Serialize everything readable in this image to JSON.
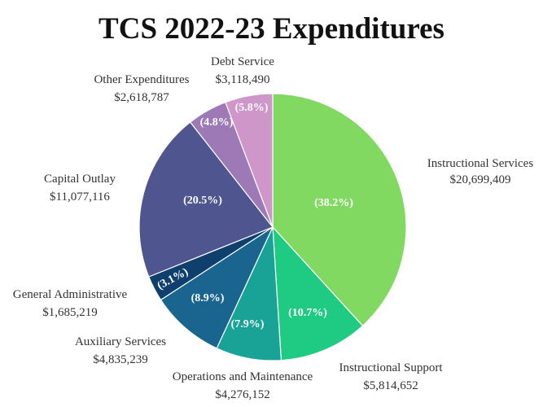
{
  "chart_data": {
    "type": "pie",
    "title": "TCS 2022-23 Expenditures",
    "slices": [
      {
        "name": "Instructional Services",
        "value": 20699409,
        "value_label": "$20,699,409",
        "percent_label": "(38.2%)",
        "color": "#82d962"
      },
      {
        "name": "Instructional Support",
        "value": 5814652,
        "value_label": "$5,814,652",
        "percent_label": "(10.7%)",
        "color": "#1fca82"
      },
      {
        "name": "Operations and Maintenance",
        "value": 4276152,
        "value_label": "$4,276,152",
        "percent_label": "(7.9%)",
        "color": "#19a397"
      },
      {
        "name": "Auxiliary Services",
        "value": 4835239,
        "value_label": "$4,835,239",
        "percent_label": "(8.9%)",
        "color": "#1a6590"
      },
      {
        "name": "General Administrative",
        "value": 1685219,
        "value_label": "$1,685,219",
        "percent_label": "(3.1%)",
        "color": "#0f3f6c"
      },
      {
        "name": "Capital Outlay",
        "value": 11077116,
        "value_label": "$11,077,116",
        "percent_label": "(20.5%)",
        "color": "#4f558e"
      },
      {
        "name": "Other Expenditures",
        "value": 2618787,
        "value_label": "$2,618,787",
        "percent_label": "(4.8%)",
        "color": "#9d7ab5"
      },
      {
        "name": "Debt Service",
        "value": 3118490,
        "value_label": "$3,118,490",
        "percent_label": "(5.8%)",
        "color": "#cf97c9"
      }
    ]
  }
}
